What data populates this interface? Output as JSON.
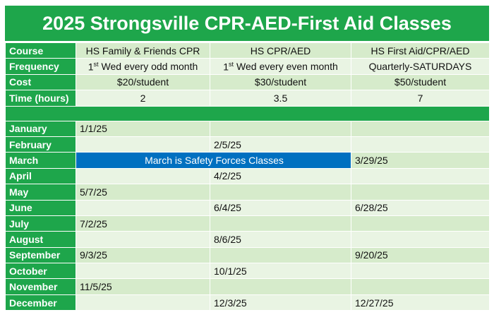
{
  "title": "2025 Strongsville CPR-AED-First Aid Classes",
  "info_rows": [
    {
      "label": "Course",
      "cells": [
        {
          "text": "HS Family & Friends CPR"
        },
        {
          "text": "HS CPR/AED"
        },
        {
          "text": "HS First Aid/CPR/AED"
        }
      ]
    },
    {
      "label": "Frequency",
      "cells": [
        {
          "ordinal": "1",
          "suffix": "st",
          "text": "Wed every odd month"
        },
        {
          "ordinal": "1",
          "suffix": "st",
          "text": "Wed every even month"
        },
        {
          "text": "Quarterly-SATURDAYS"
        }
      ]
    },
    {
      "label": "Cost",
      "cells": [
        {
          "text": "$20/student"
        },
        {
          "text": "$30/student"
        },
        {
          "text": "$50/student"
        }
      ]
    },
    {
      "label": "Time (hours)",
      "cells": [
        {
          "text": "2"
        },
        {
          "text": "3.5"
        },
        {
          "text": "7"
        }
      ]
    }
  ],
  "months": [
    {
      "month": "January",
      "dates": [
        "1/1/25",
        null,
        null
      ]
    },
    {
      "month": "February",
      "dates": [
        null,
        "2/5/25",
        null
      ]
    },
    {
      "month": "March",
      "banner": "March is Safety Forces Classes",
      "dates": [
        null,
        null,
        "3/29/25"
      ]
    },
    {
      "month": "April",
      "dates": [
        null,
        "4/2/25",
        null
      ]
    },
    {
      "month": "May",
      "dates": [
        "5/7/25",
        null,
        null
      ]
    },
    {
      "month": "June",
      "dates": [
        null,
        "6/4/25",
        "6/28/25"
      ]
    },
    {
      "month": "July",
      "dates": [
        "7/2/25",
        null,
        null
      ]
    },
    {
      "month": "August",
      "dates": [
        null,
        "8/6/25",
        null
      ]
    },
    {
      "month": "September",
      "dates": [
        "9/3/25",
        null,
        "9/20/25"
      ]
    },
    {
      "month": "October",
      "dates": [
        null,
        "10/1/25",
        null
      ]
    },
    {
      "month": "November",
      "dates": [
        "11/5/25",
        null,
        null
      ]
    },
    {
      "month": "December",
      "dates": [
        null,
        "12/3/25",
        "12/27/25"
      ]
    }
  ]
}
